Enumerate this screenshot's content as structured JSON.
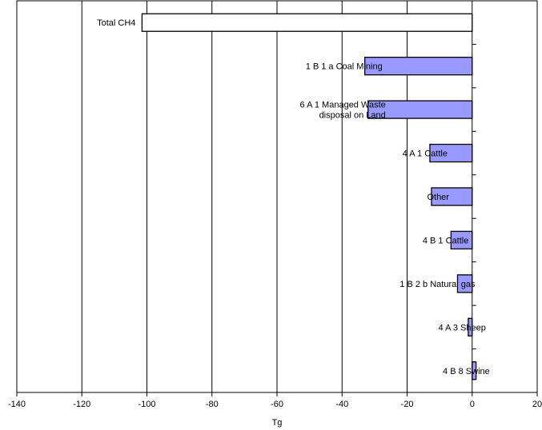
{
  "chart_data": {
    "type": "bar",
    "orientation": "horizontal",
    "categories": [
      [
        "Total CH4"
      ],
      [
        "1 B 1 a Coal Mining"
      ],
      [
        "6 A 1 Managed Waste",
        "disposal on Land"
      ],
      [
        "4 A 1 Cattle"
      ],
      [
        "Other"
      ],
      [
        "4 B 1 Cattle"
      ],
      [
        "1 B 2 b Natural gas"
      ],
      [
        "4 A 3 Sheep"
      ],
      [
        "4 B 8 Swine"
      ]
    ],
    "values": [
      -101.5,
      -33,
      -32,
      -13,
      -12.5,
      -6.5,
      -4.5,
      -1.2,
      1.2
    ],
    "xlabel": "Tg",
    "xlim": [
      -140,
      20
    ],
    "xticks": [
      -140,
      -120,
      -100,
      -80,
      -60,
      -40,
      -20,
      0,
      20
    ],
    "grid": "vertical",
    "colors": {
      "total_fill": "#ffffff",
      "bar_fill": "#9999ff",
      "bar_stroke": "#000000",
      "grid": "#000000"
    }
  }
}
